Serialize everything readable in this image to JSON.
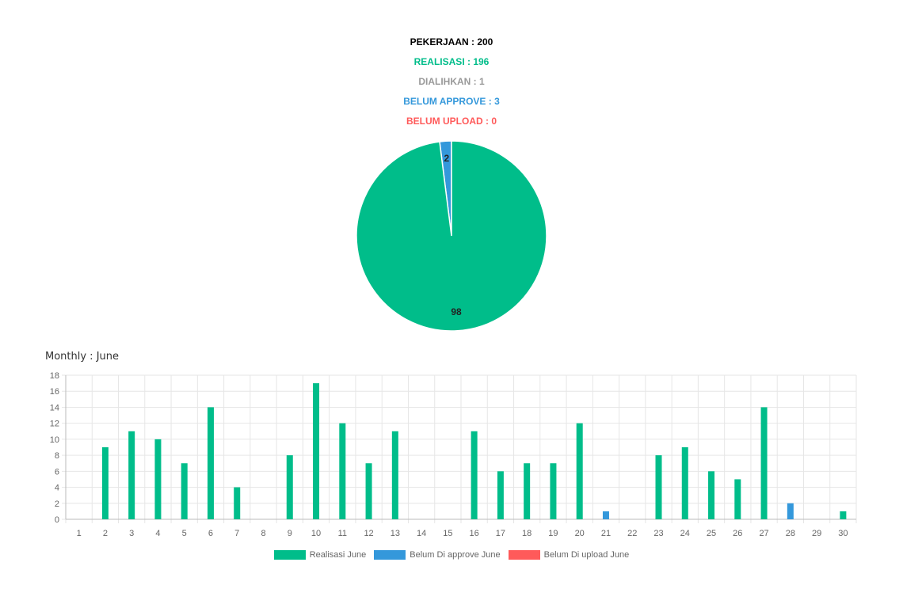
{
  "summary": {
    "pekerjaan": {
      "text": "PEKERJAAN : 200",
      "color": "#000000"
    },
    "realisasi": {
      "text": "REALISASI : 196",
      "color": "#00bd8a"
    },
    "dialihkan": {
      "text": "DIALIHKAN : 1",
      "color": "#999999"
    },
    "belum_approve": {
      "text": "BELUM APPROVE : 3",
      "color": "#3498db"
    },
    "belum_upload": {
      "text": "BELUM UPLOAD : 0",
      "color": "#ff5a5a"
    }
  },
  "monthly_title": "Monthly : June",
  "chart_data": [
    {
      "type": "pie",
      "slices": [
        {
          "label": "98",
          "value": 98,
          "color": "#00bd8a"
        },
        {
          "label": "2",
          "value": 2,
          "color": "#3498db"
        }
      ]
    },
    {
      "type": "bar",
      "categories": [
        "1",
        "2",
        "3",
        "4",
        "5",
        "6",
        "7",
        "8",
        "9",
        "10",
        "11",
        "12",
        "13",
        "14",
        "15",
        "16",
        "17",
        "18",
        "19",
        "20",
        "21",
        "22",
        "23",
        "24",
        "25",
        "26",
        "27",
        "28",
        "29",
        "30"
      ],
      "series": [
        {
          "name": "Realisasi June",
          "color": "#00bd8a",
          "values": [
            0,
            9,
            11,
            10,
            7,
            14,
            4,
            0,
            8,
            17,
            12,
            7,
            11,
            0,
            0,
            11,
            6,
            7,
            7,
            12,
            0,
            0,
            8,
            9,
            6,
            5,
            14,
            0,
            0,
            1
          ]
        },
        {
          "name": "Belum Di approve June",
          "color": "#3498db",
          "values": [
            0,
            0,
            0,
            0,
            0,
            0,
            0,
            0,
            0,
            0,
            0,
            0,
            0,
            0,
            0,
            0,
            0,
            0,
            0,
            0,
            1,
            0,
            0,
            0,
            0,
            0,
            0,
            2,
            0,
            0
          ]
        },
        {
          "name": "Belum Di upload June",
          "color": "#ff5a5a",
          "values": [
            0,
            0,
            0,
            0,
            0,
            0,
            0,
            0,
            0,
            0,
            0,
            0,
            0,
            0,
            0,
            0,
            0,
            0,
            0,
            0,
            0,
            0,
            0,
            0,
            0,
            0,
            0,
            0,
            0,
            0
          ]
        }
      ],
      "yticks": [
        0,
        2,
        4,
        6,
        8,
        10,
        12,
        14,
        16,
        18
      ],
      "ylim": [
        0,
        18
      ],
      "grid": true,
      "legend": "bottom"
    }
  ]
}
